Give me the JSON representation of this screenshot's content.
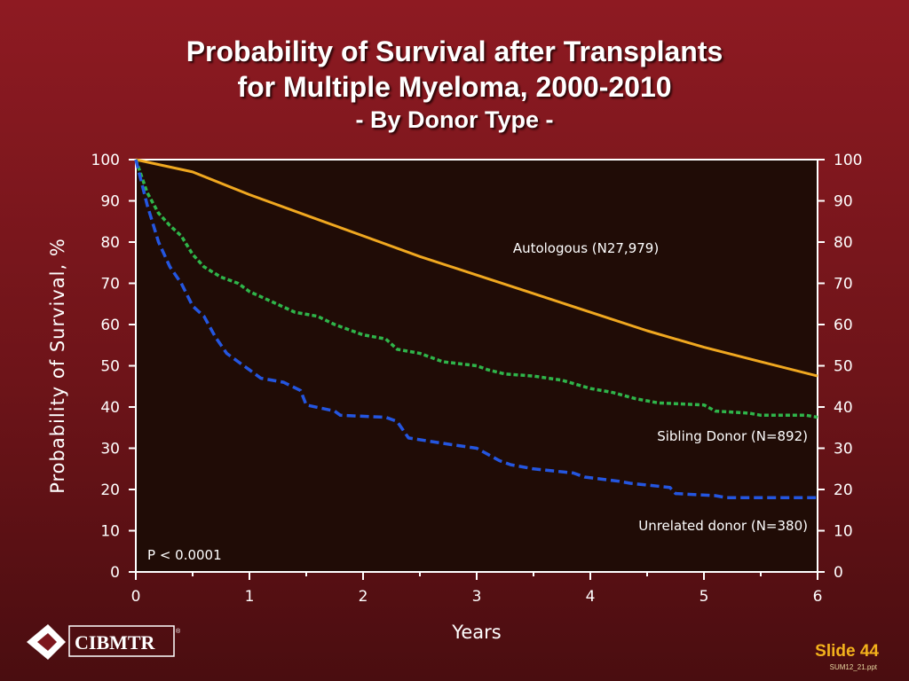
{
  "slide": {
    "title_line1": "Probability of Survival after Transplants",
    "title_line2": "for Multiple Myeloma, 2000-2010",
    "subtitle": "- By Donor Type -",
    "logo_text": "CIBMTR",
    "logo_mark": "®",
    "slide_label": "Slide 44",
    "file_name": "SUM12_21.ppt"
  },
  "colors": {
    "plot_bg": "#200c06",
    "axis": "#ffffff",
    "text": "#ffffff",
    "slide_label": "#f3b21c"
  },
  "chart_data": {
    "type": "line",
    "title": "Probability of Survival after Transplants for Multiple Myeloma, 2000-2010",
    "subtitle": "- By Donor Type -",
    "xlabel": "Years",
    "ylabel": "Probability of Survival, %",
    "xlim": [
      0,
      6
    ],
    "ylim": [
      0,
      100
    ],
    "x_ticks": [
      0,
      1,
      2,
      3,
      4,
      5,
      6
    ],
    "y_ticks": [
      0,
      10,
      20,
      30,
      40,
      50,
      60,
      70,
      80,
      90,
      100
    ],
    "y_axis_right": true,
    "grid": false,
    "annotation": "P < 0.0001",
    "series": [
      {
        "name": "Autologous (N27,979)",
        "color": "#f0a820",
        "style": "solid",
        "points": [
          [
            0,
            100
          ],
          [
            0.5,
            97
          ],
          [
            1,
            91.5
          ],
          [
            1.5,
            86.5
          ],
          [
            2,
            81.5
          ],
          [
            2.5,
            76.5
          ],
          [
            3,
            72
          ],
          [
            3.5,
            67.5
          ],
          [
            4,
            63
          ],
          [
            4.5,
            58.5
          ],
          [
            5,
            54.5
          ],
          [
            5.5,
            51
          ],
          [
            6,
            47.5
          ]
        ]
      },
      {
        "name": "Sibling Donor (N=892)",
        "color": "#2fb54a",
        "style": "dashed",
        "points": [
          [
            0,
            100
          ],
          [
            0.1,
            92
          ],
          [
            0.2,
            87
          ],
          [
            0.3,
            84
          ],
          [
            0.4,
            81.5
          ],
          [
            0.5,
            77
          ],
          [
            0.6,
            74
          ],
          [
            0.75,
            71.5
          ],
          [
            0.9,
            70
          ],
          [
            1,
            68
          ],
          [
            1.2,
            65.5
          ],
          [
            1.4,
            63
          ],
          [
            1.6,
            62
          ],
          [
            1.75,
            60
          ],
          [
            2,
            57.5
          ],
          [
            2.2,
            56.5
          ],
          [
            2.3,
            54
          ],
          [
            2.5,
            53
          ],
          [
            2.7,
            51
          ],
          [
            3,
            50
          ],
          [
            3.1,
            49
          ],
          [
            3.25,
            48
          ],
          [
            3.5,
            47.5
          ],
          [
            3.75,
            46.5
          ],
          [
            4,
            44.5
          ],
          [
            4.2,
            43.5
          ],
          [
            4.4,
            42
          ],
          [
            4.6,
            41
          ],
          [
            5,
            40.5
          ],
          [
            5.1,
            39
          ],
          [
            5.4,
            38.5
          ],
          [
            5.5,
            38
          ],
          [
            5.9,
            38
          ],
          [
            6,
            37.5
          ]
        ]
      },
      {
        "name": "Unrelated donor (N=380)",
        "color": "#2456e0",
        "style": "dashed",
        "points": [
          [
            0,
            100
          ],
          [
            0.1,
            89
          ],
          [
            0.2,
            80
          ],
          [
            0.3,
            74
          ],
          [
            0.4,
            70
          ],
          [
            0.5,
            64.5
          ],
          [
            0.6,
            62
          ],
          [
            0.7,
            57
          ],
          [
            0.8,
            53
          ],
          [
            0.9,
            51
          ],
          [
            1,
            49
          ],
          [
            1.1,
            47
          ],
          [
            1.3,
            46
          ],
          [
            1.45,
            44
          ],
          [
            1.5,
            40.5
          ],
          [
            1.75,
            39
          ],
          [
            1.8,
            38
          ],
          [
            2.2,
            37.5
          ],
          [
            2.3,
            36.5
          ],
          [
            2.4,
            32.5
          ],
          [
            2.75,
            31
          ],
          [
            3,
            30
          ],
          [
            3.2,
            27
          ],
          [
            3.3,
            26
          ],
          [
            3.5,
            25
          ],
          [
            3.85,
            24
          ],
          [
            3.95,
            23
          ],
          [
            4.25,
            22
          ],
          [
            4.35,
            21.5
          ],
          [
            4.7,
            20.5
          ],
          [
            4.75,
            19
          ],
          [
            5.1,
            18.5
          ],
          [
            5.2,
            18
          ],
          [
            6,
            18
          ]
        ]
      }
    ]
  }
}
